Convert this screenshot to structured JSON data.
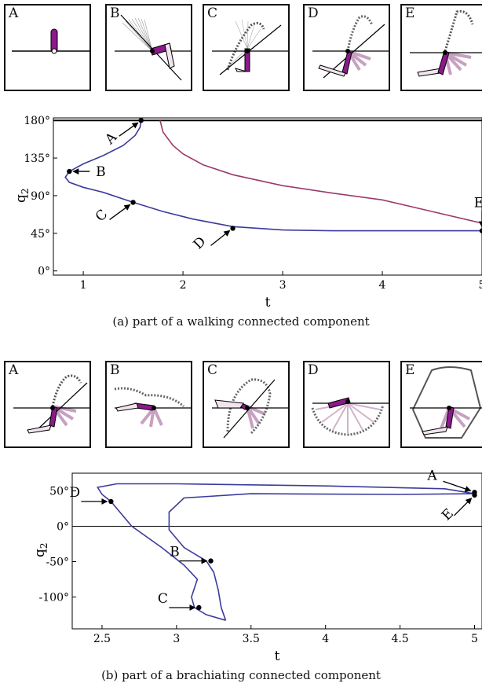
{
  "figure_a": {
    "panel_labels": [
      "A",
      "B",
      "C",
      "D",
      "E"
    ],
    "caption": "(a) part of a walking connected component",
    "ylabel": "q",
    "ylabel_sub": "2",
    "xlabel": "t"
  },
  "figure_b": {
    "panel_labels": [
      "A",
      "B",
      "C",
      "D",
      "E"
    ],
    "caption": "(b) part of a brachiating connected component",
    "ylabel": "q",
    "ylabel_sub": "2",
    "xlabel": "t"
  },
  "colors": {
    "blue_curve": "#3b3b9e",
    "red_curve": "#9b3a6a",
    "link_purple": "#8b1a8b"
  },
  "chart_data": [
    {
      "type": "line",
      "xlabel": "t",
      "ylabel": "q2",
      "xlim": [
        0.7,
        5.0
      ],
      "ylim": [
        -5,
        183
      ],
      "x_ticks": [
        "1",
        "2",
        "3",
        "4",
        "5"
      ],
      "y_ticks": [
        "0°",
        "45°",
        "90°",
        "135°",
        "180°"
      ],
      "x_tick_values": [
        1,
        2,
        3,
        4,
        5
      ],
      "y_tick_values": [
        0,
        45,
        90,
        135,
        180
      ],
      "reference_lines": [
        180
      ],
      "series": [
        {
          "color": "#3b3b9e",
          "x": [
            1.58,
            1.57,
            1.52,
            1.4,
            1.2,
            1.0,
            0.86,
            0.82,
            0.86,
            1.0,
            1.2,
            1.5,
            1.8,
            2.1,
            2.5,
            3.0,
            3.5,
            4.0,
            4.5,
            5.0
          ],
          "y": [
            180,
            172,
            162,
            150,
            138,
            128,
            119,
            112,
            106,
            100,
            94,
            82,
            71,
            62,
            53,
            49,
            48,
            48,
            48,
            48
          ]
        },
        {
          "color": "#9b3a6a",
          "x": [
            1.77,
            1.8,
            1.9,
            2.0,
            2.2,
            2.5,
            3.0,
            3.5,
            4.0,
            4.5,
            5.0
          ],
          "y": [
            180,
            166,
            150,
            140,
            127,
            115,
            102,
            93,
            85,
            71,
            57
          ]
        }
      ],
      "points": [
        {
          "label": "A",
          "x": 1.58,
          "y": 180
        },
        {
          "label": "B",
          "x": 0.86,
          "y": 119
        },
        {
          "label": "C",
          "x": 1.5,
          "y": 82
        },
        {
          "label": "D",
          "x": 2.5,
          "y": 51
        },
        {
          "label": "E",
          "x": 5.0,
          "y": 48
        }
      ]
    },
    {
      "type": "line",
      "xlabel": "t",
      "ylabel": "q2",
      "xlim": [
        2.3,
        5.05
      ],
      "ylim": [
        -145,
        75
      ],
      "x_ticks": [
        "2.5",
        "3",
        "3.5",
        "4",
        "4.5",
        "5"
      ],
      "y_ticks": [
        "50°",
        "0°",
        "-50°",
        "-100°"
      ],
      "x_tick_values": [
        2.5,
        3,
        3.5,
        4,
        4.5,
        5
      ],
      "y_tick_values": [
        50,
        0,
        -50,
        -100
      ],
      "reference_lines": [
        0
      ],
      "series": [
        {
          "color": "#3b3b9e",
          "x": [
            3.33,
            3.2,
            3.12,
            3.1,
            3.14,
            3.05,
            2.9,
            2.7,
            2.6,
            2.56,
            2.5,
            2.47,
            2.6,
            3.0,
            4.0,
            4.8,
            5.0,
            4.5,
            3.5,
            3.05,
            2.95,
            2.95,
            3.05,
            3.2,
            3.25,
            3.28,
            3.3,
            3.33
          ],
          "y": [
            -133,
            -125,
            -115,
            -100,
            -75,
            -55,
            -30,
            0,
            25,
            35,
            45,
            55,
            60,
            60,
            57,
            53,
            46,
            45,
            46,
            40,
            20,
            -5,
            -30,
            -49,
            -65,
            -90,
            -115,
            -133
          ]
        }
      ],
      "points": [
        {
          "label": "A",
          "x": 5.0,
          "y": 48
        },
        {
          "label": "B",
          "x": 3.23,
          "y": -49
        },
        {
          "label": "C",
          "x": 3.15,
          "y": -115
        },
        {
          "label": "D",
          "x": 2.56,
          "y": 35
        },
        {
          "label": "E",
          "x": 5.0,
          "y": 44
        }
      ]
    }
  ]
}
